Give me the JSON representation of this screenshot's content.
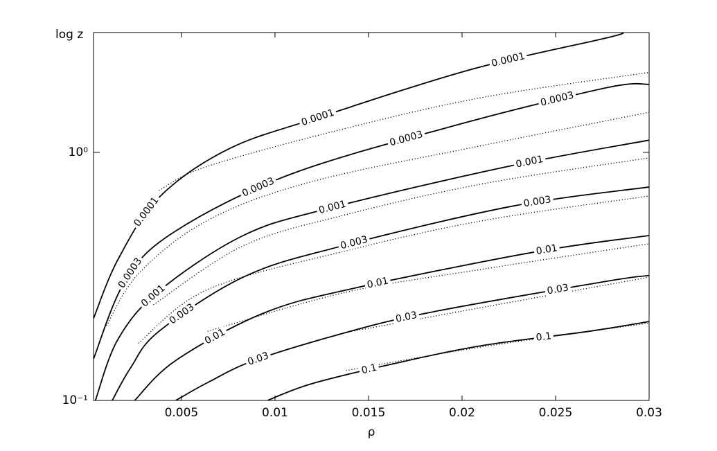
{
  "chart_data": {
    "type": "contour",
    "xlabel": "ρ",
    "ylabel": "log z",
    "xlim": [
      0.0003,
      0.03
    ],
    "ylim": [
      0.1,
      3.04
    ],
    "log_y": true,
    "xticks": [
      0.005,
      0.01,
      0.015,
      0.02,
      0.025,
      0.03
    ],
    "yticks": [
      {
        "value": 0.1,
        "label": "10⁻¹"
      },
      {
        "value": 1,
        "label": "10⁰"
      }
    ],
    "color": "#000000",
    "series": [
      {
        "style": "solid",
        "labels": [
          "0.0001",
          "0.0001",
          "0.0001"
        ],
        "x": [
          0.0003,
          0.0016,
          0.0038,
          0.0075,
          0.0123,
          0.0205,
          0.0277,
          0.0286
        ],
        "y": [
          0.214,
          0.369,
          0.658,
          1.03,
          1.38,
          2.16,
          2.89,
          3.04
        ]
      },
      {
        "style": "solid",
        "labels": [
          "0.0003",
          "0.0003",
          "0.0003",
          "0.0003"
        ],
        "x": [
          0.0003,
          0.002,
          0.0046,
          0.0107,
          0.0194,
          0.0277,
          0.03
        ],
        "y": [
          0.147,
          0.304,
          0.477,
          0.809,
          1.27,
          1.82,
          1.88
        ]
      },
      {
        "style": "solid",
        "labels": [
          "0.001",
          "0.001",
          "0.001"
        ],
        "x": [
          0.0004,
          0.0016,
          0.0038,
          0.0083,
          0.013,
          0.0225,
          0.03
        ],
        "y": [
          0.1,
          0.176,
          0.276,
          0.462,
          0.598,
          0.879,
          1.12
        ]
      },
      {
        "style": "solid",
        "labels": [
          "0.003",
          "0.003",
          "0.003"
        ],
        "x": [
          0.0013,
          0.0023,
          0.0038,
          0.0083,
          0.0133,
          0.0226,
          0.03
        ],
        "y": [
          0.1,
          0.136,
          0.19,
          0.314,
          0.414,
          0.605,
          0.725
        ]
      },
      {
        "style": "solid",
        "labels": [
          "0.01",
          "0.01",
          "0.01"
        ],
        "x": [
          0.0025,
          0.0047,
          0.0094,
          0.0143,
          0.024,
          0.03
        ],
        "y": [
          0.1,
          0.145,
          0.225,
          0.284,
          0.398,
          0.462
        ]
      },
      {
        "style": "solid",
        "labels": [
          "0.03",
          "0.03",
          "0.03"
        ],
        "x": [
          0.0047,
          0.0064,
          0.0089,
          0.0138,
          0.0185,
          0.0277,
          0.03
        ],
        "y": [
          0.1,
          0.118,
          0.145,
          0.188,
          0.228,
          0.302,
          0.319
        ]
      },
      {
        "style": "solid",
        "labels": [
          "0.1",
          "0.1"
        ],
        "x": [
          0.0096,
          0.012,
          0.0166,
          0.0212,
          0.0268,
          0.03
        ],
        "y": [
          0.1,
          0.117,
          0.142,
          0.167,
          0.19,
          0.208
        ]
      },
      {
        "style": "dotted",
        "x": [
          0.0038,
          0.0064,
          0.0138,
          0.0212,
          0.03
        ],
        "y": [
          0.702,
          0.879,
          1.25,
          1.67,
          2.1
        ]
      },
      {
        "style": "dotted",
        "x": [
          0.001,
          0.0027,
          0.0064,
          0.012,
          0.0212,
          0.03
        ],
        "y": [
          0.2,
          0.324,
          0.532,
          0.763,
          1.07,
          1.45
        ]
      },
      {
        "style": "dotted",
        "x": [
          0.0035,
          0.0083,
          0.0138,
          0.0212,
          0.03
        ],
        "y": [
          0.243,
          0.42,
          0.561,
          0.749,
          0.95
        ]
      },
      {
        "style": "dotted",
        "x": [
          0.0027,
          0.0064,
          0.0138,
          0.0212,
          0.03
        ],
        "y": [
          0.17,
          0.28,
          0.401,
          0.532,
          0.667
        ]
      },
      {
        "style": "dotted",
        "x": [
          0.0064,
          0.0138,
          0.0212,
          0.03
        ],
        "y": [
          0.19,
          0.273,
          0.339,
          0.428
        ]
      },
      {
        "style": "dotted",
        "x": [
          0.0138,
          0.0212,
          0.03
        ],
        "y": [
          0.188,
          0.238,
          0.314
        ]
      },
      {
        "style": "dotted",
        "x": [
          0.0138,
          0.0212,
          0.03
        ],
        "y": [
          0.132,
          0.165,
          0.205
        ]
      }
    ]
  }
}
